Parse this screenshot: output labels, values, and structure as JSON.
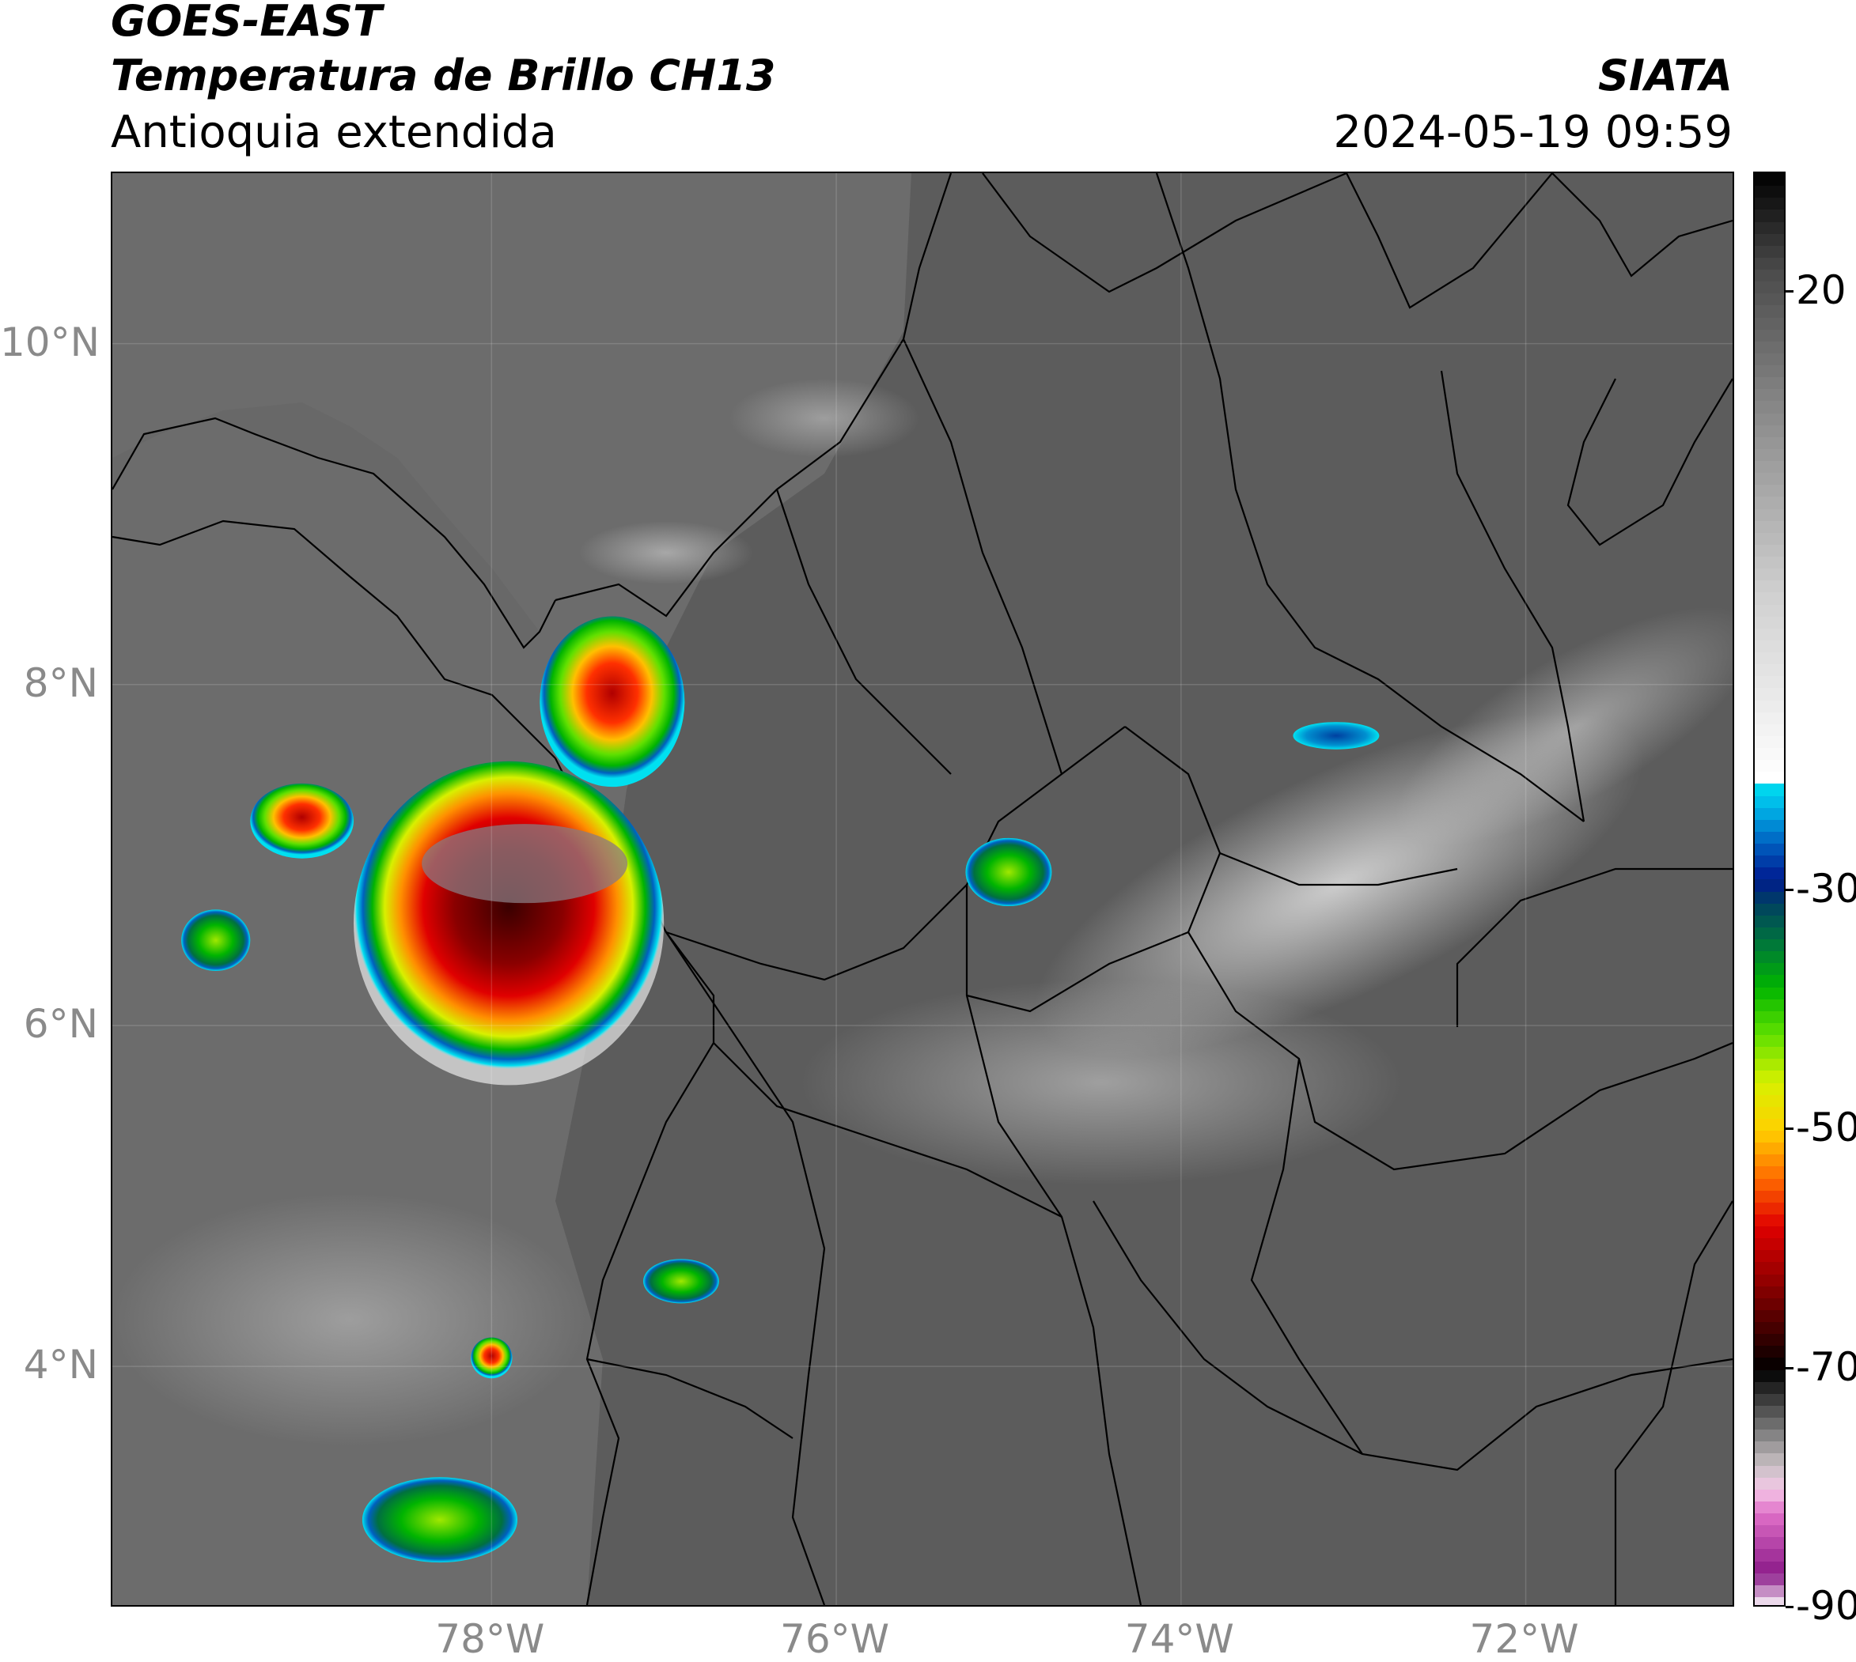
{
  "header": {
    "title_line1": "GOES-EAST",
    "title_line2": "Temperatura de Brillo CH13",
    "subtitle": "Antioquia extendida",
    "brand": "SIATA",
    "datetime": "2024-05-19 09:59"
  },
  "map": {
    "lon_range": [
      -80.2,
      -70.8
    ],
    "lat_range": [
      2.6,
      11.0
    ],
    "lat_ticks": [
      {
        "value": 10,
        "label": "10°N"
      },
      {
        "value": 8,
        "label": "8°N"
      },
      {
        "value": 6,
        "label": "6°N"
      },
      {
        "value": 4,
        "label": "4°N"
      }
    ],
    "lon_ticks": [
      {
        "value": -78,
        "label": "78°W"
      },
      {
        "value": -76,
        "label": "76°W"
      },
      {
        "value": -74,
        "label": "74°W"
      },
      {
        "value": -72,
        "label": "72°W"
      }
    ],
    "background_color": "#6a6a6a",
    "land_color": "#5e5e5e",
    "coastline_color": "#000000"
  },
  "colorbar": {
    "range": [
      -90,
      30
    ],
    "labels": [
      {
        "value": 20,
        "label": "20"
      },
      {
        "value": -30,
        "label": "-30"
      },
      {
        "value": -50,
        "label": "-50"
      },
      {
        "value": -70,
        "label": "-70"
      },
      {
        "value": -90,
        "label": "-90"
      }
    ],
    "stops": [
      {
        "t": -90,
        "color": "#ffffff"
      },
      {
        "t": -87,
        "color": "#8b1a89"
      },
      {
        "t": -82,
        "color": "#e070c8"
      },
      {
        "t": -80,
        "color": "#f4c8e6"
      },
      {
        "t": -78,
        "color": "#c8c0c4"
      },
      {
        "t": -75,
        "color": "#787878"
      },
      {
        "t": -72,
        "color": "#303030"
      },
      {
        "t": -70,
        "color": "#000000"
      },
      {
        "t": -67,
        "color": "#3c0000"
      },
      {
        "t": -63,
        "color": "#8a0000"
      },
      {
        "t": -58,
        "color": "#e00000"
      },
      {
        "t": -54,
        "color": "#ff6a00"
      },
      {
        "t": -50,
        "color": "#ffd000"
      },
      {
        "t": -46,
        "color": "#d8f000"
      },
      {
        "t": -42,
        "color": "#60e000"
      },
      {
        "t": -38,
        "color": "#00b400"
      },
      {
        "t": -34,
        "color": "#007040"
      },
      {
        "t": -31,
        "color": "#004060"
      },
      {
        "t": -29,
        "color": "#001a90"
      },
      {
        "t": -26,
        "color": "#0060c0"
      },
      {
        "t": -23,
        "color": "#00b4e8"
      },
      {
        "t": -21,
        "color": "#00e0f0"
      },
      {
        "t": -20.5,
        "color": "#ffffff"
      },
      {
        "t": -5,
        "color": "#cfcfcf"
      },
      {
        "t": 10,
        "color": "#8a8a8a"
      },
      {
        "t": 22,
        "color": "#4a4a4a"
      },
      {
        "t": 30,
        "color": "#000000"
      }
    ]
  },
  "storms": [
    {
      "lon": -77.9,
      "lat": 6.6,
      "rlon": 0.9,
      "rlat": 0.95,
      "core": "dark"
    },
    {
      "lon": -77.3,
      "lat": 7.9,
      "rlon": 0.42,
      "rlat": 0.5,
      "core": "red"
    },
    {
      "lon": -79.1,
      "lat": 7.2,
      "rlon": 0.3,
      "rlat": 0.22,
      "core": "red"
    },
    {
      "lon": -79.6,
      "lat": 6.5,
      "rlon": 0.2,
      "rlat": 0.18,
      "core": "green"
    },
    {
      "lon": -75.0,
      "lat": 6.9,
      "rlon": 0.25,
      "rlat": 0.2,
      "core": "green"
    },
    {
      "lon": -76.9,
      "lat": 4.5,
      "rlon": 0.22,
      "rlat": 0.13,
      "core": "green"
    },
    {
      "lon": -78.0,
      "lat": 4.05,
      "rlon": 0.12,
      "rlat": 0.12,
      "core": "red"
    },
    {
      "lon": -78.3,
      "lat": 3.1,
      "rlon": 0.45,
      "rlat": 0.25,
      "core": "green"
    },
    {
      "lon": -73.1,
      "lat": 7.7,
      "rlon": 0.25,
      "rlat": 0.08,
      "core": "blue"
    }
  ]
}
